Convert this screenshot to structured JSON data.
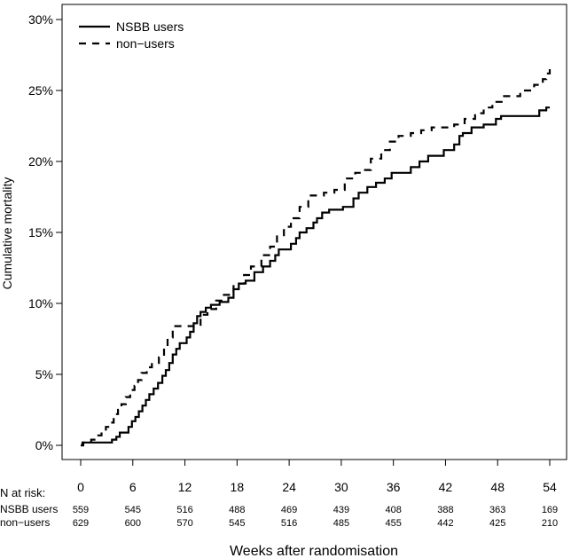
{
  "chart_data": {
    "type": "line",
    "subtype": "kaplan-meier-cumulative-incidence",
    "ylabel": "Cumulative mortality",
    "xlabel": "Weeks after randomisation",
    "xlim": [
      0,
      54
    ],
    "ylim": [
      0,
      30
    ],
    "xticks": [
      0,
      6,
      12,
      18,
      24,
      30,
      36,
      42,
      48,
      54
    ],
    "yticks": [
      0,
      5,
      10,
      15,
      20,
      25,
      30
    ],
    "ytick_suffix": "%",
    "grid": false,
    "legend_position": "top-left",
    "series": [
      {
        "name": "NSBB users",
        "style": "solid",
        "color": "#000000",
        "points": [
          [
            0,
            0
          ],
          [
            0.3,
            0.2
          ],
          [
            3.1,
            0.2
          ],
          [
            3.6,
            0.4
          ],
          [
            4.1,
            0.6
          ],
          [
            4.5,
            0.9
          ],
          [
            5.2,
            0.9
          ],
          [
            5.5,
            1.3
          ],
          [
            5.9,
            1.7
          ],
          [
            6.3,
            2.0
          ],
          [
            6.7,
            2.4
          ],
          [
            7.1,
            2.8
          ],
          [
            7.5,
            3.2
          ],
          [
            7.9,
            3.6
          ],
          [
            8.4,
            4.0
          ],
          [
            8.9,
            4.4
          ],
          [
            9.4,
            4.9
          ],
          [
            9.8,
            5.3
          ],
          [
            10.2,
            5.8
          ],
          [
            10.6,
            6.4
          ],
          [
            11.0,
            6.8
          ],
          [
            11.4,
            7.2
          ],
          [
            12.2,
            7.6
          ],
          [
            12.6,
            8.0
          ],
          [
            13.0,
            8.6
          ],
          [
            13.4,
            9.1
          ],
          [
            13.8,
            9.4
          ],
          [
            14.4,
            9.7
          ],
          [
            15.0,
            9.9
          ],
          [
            16.0,
            10.1
          ],
          [
            17.0,
            10.4
          ],
          [
            17.6,
            11.0
          ],
          [
            18.2,
            11.4
          ],
          [
            19.0,
            11.6
          ],
          [
            20.0,
            12.2
          ],
          [
            21.0,
            12.6
          ],
          [
            21.8,
            13.0
          ],
          [
            22.4,
            13.4
          ],
          [
            22.8,
            13.8
          ],
          [
            24.2,
            14.2
          ],
          [
            24.8,
            14.6
          ],
          [
            25.2,
            15.0
          ],
          [
            26.0,
            15.3
          ],
          [
            26.8,
            15.7
          ],
          [
            27.2,
            16.0
          ],
          [
            27.8,
            16.4
          ],
          [
            28.6,
            16.6
          ],
          [
            30.2,
            16.8
          ],
          [
            31.4,
            17.4
          ],
          [
            32.0,
            17.8
          ],
          [
            33.0,
            18.2
          ],
          [
            34.0,
            18.5
          ],
          [
            35.0,
            18.8
          ],
          [
            35.8,
            19.2
          ],
          [
            38.0,
            19.6
          ],
          [
            39.0,
            20.0
          ],
          [
            40.0,
            20.4
          ],
          [
            41.8,
            20.8
          ],
          [
            43.0,
            21.2
          ],
          [
            43.6,
            21.8
          ],
          [
            44.0,
            22.0
          ],
          [
            45.0,
            22.4
          ],
          [
            46.4,
            22.6
          ],
          [
            47.8,
            23.0
          ],
          [
            48.4,
            23.2
          ],
          [
            50.0,
            23.2
          ],
          [
            52.0,
            23.2
          ],
          [
            52.8,
            23.6
          ],
          [
            53.6,
            23.8
          ],
          [
            54.0,
            23.8
          ]
        ]
      },
      {
        "name": "non−users",
        "style": "dashed",
        "color": "#000000",
        "points": [
          [
            0,
            0
          ],
          [
            0.2,
            0.2
          ],
          [
            1.2,
            0.4
          ],
          [
            1.8,
            0.7
          ],
          [
            2.4,
            1.0
          ],
          [
            2.9,
            1.3
          ],
          [
            3.4,
            1.6
          ],
          [
            3.8,
            2.2
          ],
          [
            4.3,
            2.5
          ],
          [
            4.7,
            2.9
          ],
          [
            5.2,
            3.4
          ],
          [
            5.7,
            3.9
          ],
          [
            6.2,
            4.2
          ],
          [
            6.6,
            4.6
          ],
          [
            7.0,
            5.1
          ],
          [
            7.6,
            5.5
          ],
          [
            8.2,
            5.8
          ],
          [
            9.0,
            6.2
          ],
          [
            9.6,
            7.0
          ],
          [
            10.0,
            7.6
          ],
          [
            10.6,
            8.4
          ],
          [
            12.6,
            8.4
          ],
          [
            13.8,
            9.2
          ],
          [
            14.6,
            9.6
          ],
          [
            15.6,
            10.2
          ],
          [
            16.2,
            10.6
          ],
          [
            17.6,
            11.4
          ],
          [
            18.8,
            12.0
          ],
          [
            19.6,
            12.6
          ],
          [
            20.8,
            13.4
          ],
          [
            21.8,
            14.0
          ],
          [
            22.6,
            14.8
          ],
          [
            23.4,
            15.4
          ],
          [
            24.2,
            16.0
          ],
          [
            25.2,
            16.8
          ],
          [
            26.2,
            17.6
          ],
          [
            28.0,
            17.8
          ],
          [
            29.2,
            18.0
          ],
          [
            30.4,
            18.8
          ],
          [
            31.6,
            19.2
          ],
          [
            32.4,
            19.4
          ],
          [
            33.4,
            20.2
          ],
          [
            34.6,
            20.8
          ],
          [
            35.6,
            21.4
          ],
          [
            36.6,
            21.8
          ],
          [
            38.0,
            22.0
          ],
          [
            39.2,
            22.2
          ],
          [
            40.4,
            22.4
          ],
          [
            41.2,
            22.4
          ],
          [
            43.0,
            22.6
          ],
          [
            44.2,
            23.0
          ],
          [
            45.4,
            23.4
          ],
          [
            46.4,
            23.8
          ],
          [
            47.4,
            24.2
          ],
          [
            48.6,
            24.6
          ],
          [
            50.6,
            25.0
          ],
          [
            52.2,
            25.4
          ],
          [
            53.2,
            25.8
          ],
          [
            53.6,
            26.2
          ],
          [
            54.0,
            26.9
          ]
        ]
      }
    ],
    "risk_table": {
      "title": "N at risk:",
      "rows": [
        {
          "label": "NSBB users",
          "values": [
            "559",
            "545",
            "516",
            "488",
            "469",
            "439",
            "408",
            "388",
            "363",
            "169"
          ]
        },
        {
          "label": "non−users",
          "values": [
            "629",
            "600",
            "570",
            "545",
            "516",
            "485",
            "455",
            "442",
            "425",
            "210"
          ]
        }
      ]
    }
  }
}
